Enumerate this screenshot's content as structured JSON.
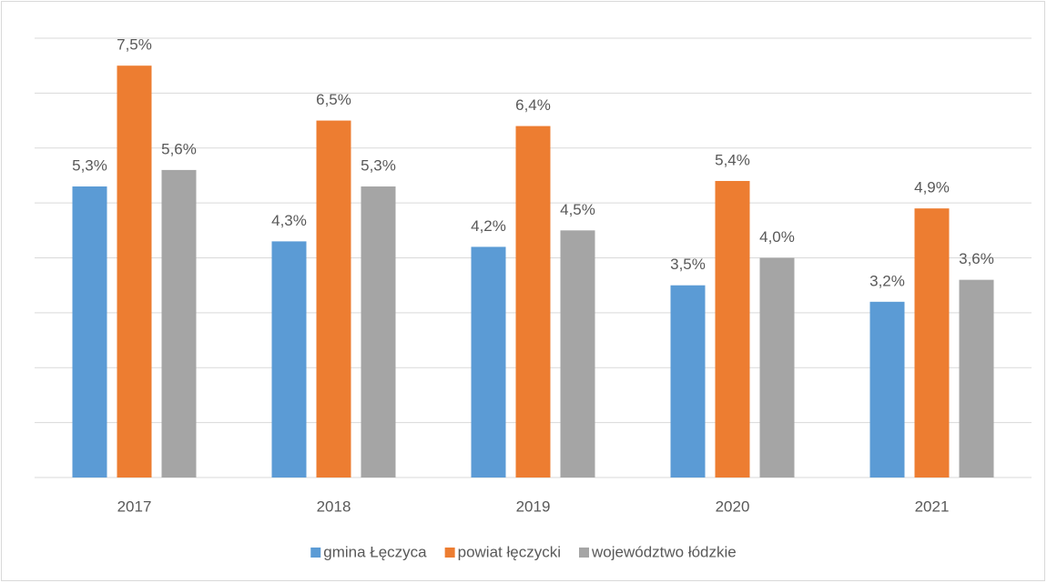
{
  "chart_data": {
    "type": "bar",
    "categories": [
      "2017",
      "2018",
      "2019",
      "2020",
      "2021"
    ],
    "series": [
      {
        "name": "gmina Łęczyca",
        "color": "#5b9bd5",
        "values": [
          5.3,
          4.3,
          4.2,
          3.5,
          3.2
        ],
        "value_labels": [
          "5,3%",
          "4,3%",
          "4,2%",
          "3,5%",
          "3,2%"
        ]
      },
      {
        "name": "powiat łęczycki",
        "color": "#ed7d31",
        "values": [
          7.5,
          6.5,
          6.4,
          5.4,
          4.9
        ],
        "value_labels": [
          "7,5%",
          "6,5%",
          "6,4%",
          "5,4%",
          "4,9%"
        ]
      },
      {
        "name": "województwo łódzkie",
        "color": "#a5a5a5",
        "values": [
          5.6,
          5.3,
          4.5,
          4.0,
          3.6
        ],
        "value_labels": [
          "5,6%",
          "5,3%",
          "4,5%",
          "4,0%",
          "3,6%"
        ]
      }
    ],
    "ylim": [
      0,
      8
    ],
    "yticks": [
      0,
      1,
      2,
      3,
      4,
      5,
      6,
      7,
      8
    ],
    "grid": true,
    "legend": "bottom"
  }
}
